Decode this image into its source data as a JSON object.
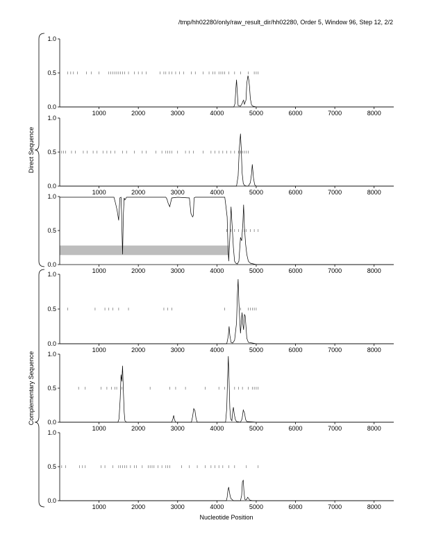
{
  "header": {
    "title": "/tmp/hh02280/only/raw_result_dir/hh02280, Order 5, Window 96, Step 12, 2/2"
  },
  "labels": {
    "xlabel": "Nucleotide Position",
    "direct_group": "Direct Sequence",
    "complementary_group": "Complementary Sequence"
  },
  "colors": {
    "line": "#000000",
    "band": "#bdbdbd"
  },
  "chart_data": [
    {
      "type": "line",
      "group": "Direct Sequence",
      "xlim": [
        0,
        8500
      ],
      "ylim": [
        0,
        1
      ],
      "xticks": [
        "1000",
        "2000",
        "3000",
        "4000",
        "5000",
        "6000",
        "7000",
        "8000"
      ],
      "yticks": [
        "0.0",
        "0.5",
        "1.0"
      ],
      "series": [
        {
          "x": [
            0,
            4000,
            4430,
            4460,
            4480,
            4500,
            4520,
            4540,
            4600,
            4640,
            4660,
            4680,
            4700,
            4740,
            4760,
            4790,
            4810,
            4830,
            4850,
            4880,
            4920,
            5000,
            8500
          ],
          "y": [
            0,
            0,
            0,
            0.05,
            0.25,
            0.4,
            0.2,
            0.02,
            0.01,
            0.05,
            0.08,
            0.1,
            0.04,
            0.1,
            0.35,
            0.46,
            0.4,
            0.3,
            0.12,
            0.03,
            0.01,
            0,
            0
          ]
        }
      ],
      "markers_y": 0.5,
      "markers_x": [
        200,
        280,
        350,
        450,
        680,
        800,
        1000,
        1250,
        1300,
        1350,
        1400,
        1450,
        1500,
        1550,
        1600,
        1650,
        1750,
        1900,
        2000,
        2100,
        2200,
        2550,
        2650,
        2700,
        2780,
        2850,
        2950,
        3050,
        3150,
        3350,
        3450,
        3650,
        3800,
        3900,
        3950,
        4050,
        4100,
        4150,
        4200,
        4300,
        4450,
        4600,
        4800,
        4950,
        5000,
        5050
      ]
    },
    {
      "type": "line",
      "group": "Direct Sequence",
      "xlim": [
        0,
        8500
      ],
      "ylim": [
        0,
        1
      ],
      "xticks": [
        "1000",
        "2000",
        "3000",
        "4000",
        "5000",
        "6000",
        "7000",
        "8000"
      ],
      "yticks": [
        "0.0",
        "0.5",
        "1.0"
      ],
      "series": [
        {
          "x": [
            0,
            4500,
            4540,
            4570,
            4600,
            4620,
            4640,
            4670,
            4700,
            4750,
            4800,
            4850,
            4880,
            4900,
            4930,
            4960,
            5000,
            8500
          ],
          "y": [
            0,
            0,
            0.15,
            0.55,
            0.77,
            0.55,
            0.2,
            0.04,
            0.01,
            0,
            0,
            0.05,
            0.18,
            0.32,
            0.12,
            0.02,
            0,
            0
          ]
        }
      ],
      "markers_y": 0.5,
      "markers_x": [
        50,
        100,
        150,
        300,
        400,
        600,
        700,
        850,
        950,
        1100,
        1200,
        1300,
        1400,
        1600,
        1700,
        1900,
        2100,
        2200,
        2450,
        2600,
        2700,
        2750,
        2800,
        2850,
        3000,
        3200,
        3300,
        3400,
        3650,
        3850,
        3950,
        4050,
        4150,
        4250,
        4350,
        4450,
        4550,
        4600,
        4650,
        4700,
        4750,
        4800
      ]
    },
    {
      "type": "line",
      "group": "Direct Sequence",
      "xlim": [
        0,
        8500
      ],
      "ylim": [
        0,
        1
      ],
      "xticks": [
        "1000",
        "2000",
        "3000",
        "4000",
        "5000",
        "6000",
        "7000",
        "8000"
      ],
      "yticks": [
        "0.0",
        "0.5",
        "1.0"
      ],
      "band": {
        "x": [
          0,
          4300
        ],
        "y": [
          0.14,
          0.28
        ]
      },
      "series": [
        {
          "x": [
            0,
            1380,
            1420,
            1460,
            1500,
            1530,
            1560,
            1580,
            1600,
            1620,
            1640,
            1660,
            1700,
            2700,
            2730,
            2760,
            2800,
            2850,
            3000,
            3300,
            3340,
            3380,
            3400,
            3420,
            3450,
            3500,
            4200,
            4230,
            4260,
            4280,
            4300,
            4330,
            4360,
            4390,
            4420,
            4450,
            4480,
            4520,
            4560,
            4600,
            4630,
            4660,
            4680,
            4700,
            4730,
            4760,
            4800,
            4850,
            5000,
            8500
          ],
          "y": [
            0.99,
            0.99,
            0.9,
            0.8,
            0.65,
            0.98,
            0.99,
            0.6,
            0.15,
            0.75,
            0.98,
            0.95,
            0.99,
            0.99,
            0.96,
            0.9,
            0.85,
            0.98,
            0.99,
            0.98,
            0.75,
            0.7,
            0.72,
            0.98,
            0.99,
            0.99,
            0.99,
            0.85,
            0.7,
            0.3,
            0.05,
            0.4,
            0.85,
            0.55,
            0.25,
            0.05,
            0.02,
            0.01,
            0.05,
            0.4,
            0.35,
            0.6,
            0.88,
            0.55,
            0.3,
            0.15,
            0.05,
            0.02,
            0,
            0
          ]
        }
      ],
      "markers_y": 0.5,
      "markers_x": [
        4250,
        4350,
        4450,
        4550,
        4650,
        4700,
        4750,
        4850,
        4950,
        5050
      ]
    },
    {
      "type": "line",
      "group": "Complementary Sequence",
      "xlim": [
        0,
        8500
      ],
      "ylim": [
        0,
        1
      ],
      "xticks": [
        "1000",
        "2000",
        "3000",
        "4000",
        "5000",
        "6000",
        "7000",
        "8000"
      ],
      "yticks": [
        "0.0",
        "0.5",
        "1.0"
      ],
      "series": [
        {
          "x": [
            0,
            4250,
            4270,
            4290,
            4310,
            4330,
            4360,
            4400,
            4450,
            4500,
            4520,
            4540,
            4560,
            4580,
            4600,
            4620,
            4640,
            4660,
            4680,
            4700,
            4720,
            4740,
            4760,
            4800,
            5000,
            8500
          ],
          "y": [
            0,
            0,
            0.05,
            0.12,
            0.25,
            0.12,
            0.02,
            0.01,
            0.05,
            0.3,
            0.7,
            0.93,
            0.6,
            0.35,
            0.15,
            0.3,
            0.45,
            0.28,
            0.2,
            0.42,
            0.4,
            0.25,
            0.08,
            0.02,
            0,
            0
          ]
        }
      ],
      "markers_y": 0.5,
      "markers_x": [
        200,
        900,
        1150,
        1250,
        1350,
        1500,
        1750,
        2650,
        2750,
        2850,
        4200,
        4600,
        4800,
        4850,
        4900,
        4950,
        5000
      ]
    },
    {
      "type": "line",
      "group": "Complementary Sequence",
      "xlim": [
        0,
        8500
      ],
      "ylim": [
        0,
        1
      ],
      "xticks": [
        "1000",
        "2000",
        "3000",
        "4000",
        "5000",
        "6000",
        "7000",
        "8000"
      ],
      "yticks": [
        "0.0",
        "0.5",
        "1.0"
      ],
      "series": [
        {
          "x": [
            0,
            1480,
            1510,
            1540,
            1560,
            1580,
            1600,
            1620,
            1640,
            1660,
            1700,
            2850,
            2880,
            2900,
            2920,
            2950,
            3350,
            3380,
            3410,
            3440,
            3470,
            3500,
            4220,
            4250,
            4270,
            4290,
            4310,
            4330,
            4350,
            4380,
            4400,
            4420,
            4440,
            4470,
            4500,
            4600,
            4640,
            4670,
            4700,
            4730,
            4760,
            5000,
            8500
          ],
          "y": [
            0,
            0,
            0.05,
            0.35,
            0.7,
            0.6,
            0.83,
            0.45,
            0.15,
            0.02,
            0,
            0,
            0.05,
            0.1,
            0.04,
            0,
            0,
            0.08,
            0.2,
            0.17,
            0.05,
            0,
            0,
            0.2,
            0.6,
            0.97,
            0.6,
            0.2,
            0.05,
            0.02,
            0.15,
            0.22,
            0.12,
            0.04,
            0.01,
            0,
            0.05,
            0.18,
            0.14,
            0.04,
            0.01,
            0,
            0
          ]
        }
      ],
      "markers_y": 0.5,
      "markers_x": [
        480,
        650,
        1050,
        1200,
        1320,
        1400,
        1450,
        1580,
        2300,
        2800,
        2950,
        3200,
        3700,
        4050,
        4200,
        4450,
        4550,
        4650,
        4800,
        4900,
        4950,
        5000,
        5050
      ]
    },
    {
      "type": "line",
      "group": "Complementary Sequence",
      "xlim": [
        0,
        8500
      ],
      "ylim": [
        0,
        1
      ],
      "xticks": [
        "1000",
        "2000",
        "3000",
        "4000",
        "5000",
        "6000",
        "7000",
        "8000"
      ],
      "yticks": [
        "0.0",
        "0.5",
        "1.0"
      ],
      "series": [
        {
          "x": [
            0,
            4240,
            4260,
            4280,
            4300,
            4320,
            4340,
            4360,
            4380,
            4420,
            4600,
            4630,
            4650,
            4670,
            4690,
            4710,
            4730,
            4760,
            4780,
            4800,
            4830,
            4900,
            5000,
            8500
          ],
          "y": [
            0,
            0,
            0.05,
            0.15,
            0.2,
            0.12,
            0.06,
            0.03,
            0.02,
            0,
            0,
            0.08,
            0.28,
            0.3,
            0.12,
            0.02,
            0.01,
            0.02,
            0.05,
            0.04,
            0.01,
            0,
            0,
            0
          ]
        }
      ],
      "markers_y": 0.5,
      "markers_x": [
        50,
        150,
        500,
        580,
        650,
        1050,
        1150,
        1350,
        1500,
        1550,
        1600,
        1650,
        1700,
        1800,
        1900,
        1950,
        2100,
        2250,
        2300,
        2350,
        2400,
        2500,
        2600,
        2700,
        2750,
        2800,
        3100,
        3300,
        3500,
        3700,
        3850,
        3950,
        4050,
        4150,
        4300,
        4450,
        4750,
        5050
      ]
    }
  ]
}
